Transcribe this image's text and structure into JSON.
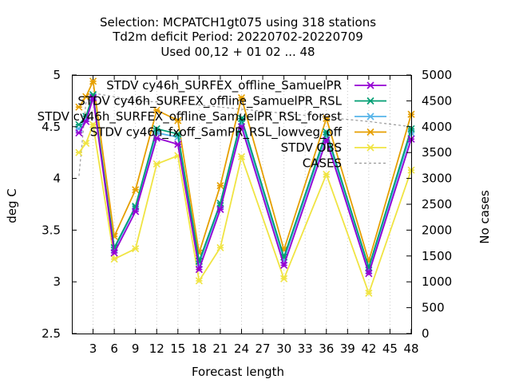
{
  "chart_data": {
    "type": "line",
    "title_lines": [
      "Selection: MCPATCH1gt075 using   318 stations",
      "Td2m deficit   Period: 20220702-20220709",
      "Used  00,12  + 01 02 ... 48"
    ],
    "xlabel": "Forecast length",
    "ylabel": "deg C",
    "y2label": "No cases",
    "xlim": [
      0,
      48
    ],
    "ylim": [
      2.5,
      5
    ],
    "y2lim": [
      0,
      5000
    ],
    "xticks": [
      3,
      6,
      9,
      12,
      15,
      18,
      21,
      24,
      27,
      30,
      33,
      36,
      39,
      42,
      45,
      48
    ],
    "yticks": [
      2.5,
      3,
      3.5,
      4,
      4.5,
      5
    ],
    "y2ticks": [
      0,
      500,
      1000,
      1500,
      2000,
      2500,
      3000,
      3500,
      4000,
      4500,
      5000
    ],
    "grid": true,
    "legend_position": "top-right",
    "x": [
      1,
      2,
      3,
      6,
      9,
      12,
      15,
      18,
      21,
      24,
      30,
      36,
      42,
      48
    ],
    "series": [
      {
        "name": "STDV cy46h_SURFEX_offline_SamuelPR",
        "color": "#9400d3",
        "marker": "x",
        "values": [
          4.44,
          4.55,
          4.78,
          3.28,
          3.68,
          4.39,
          4.33,
          3.12,
          3.7,
          4.5,
          3.16,
          4.37,
          3.08,
          4.38
        ]
      },
      {
        "name": "STDV cy46h_SURFEX_offline_SamuelPR_RSL",
        "color": "#009e73",
        "marker": "x",
        "values": [
          4.52,
          4.6,
          4.81,
          3.33,
          3.73,
          4.48,
          4.43,
          3.2,
          3.76,
          4.58,
          3.24,
          4.45,
          3.14,
          4.48
        ]
      },
      {
        "name": "STDV cy46h_SURFEX_offline_SamuelPR_RSL_forest",
        "color": "#56b4e9",
        "marker": "x",
        "values": [
          4.48,
          4.58,
          4.79,
          3.31,
          3.72,
          4.44,
          4.4,
          3.17,
          3.74,
          4.55,
          3.21,
          4.42,
          3.11,
          4.44
        ]
      },
      {
        "name": "STDV cy46h_fxoff_SamPR_RSL_lowveg_off",
        "color": "#e69f00",
        "marker": "x",
        "values": [
          4.69,
          4.79,
          4.94,
          3.44,
          3.89,
          4.66,
          4.56,
          3.28,
          3.93,
          4.78,
          3.31,
          4.58,
          3.2,
          4.62
        ]
      },
      {
        "name": "STDV OBS",
        "color": "#f0e442",
        "marker": "x",
        "values": [
          4.25,
          4.34,
          4.52,
          3.22,
          3.32,
          4.14,
          4.22,
          3.01,
          3.33,
          4.21,
          3.03,
          4.04,
          2.89,
          4.08
        ]
      },
      {
        "name": "CASES",
        "color": "#999999",
        "dashed": true,
        "axis": "y2",
        "values": [
          3050,
          4480,
          4650,
          4580,
          4500,
          4480,
          4460,
          4420,
          4380,
          4340,
          4260,
          4180,
          4100,
          4000
        ]
      }
    ]
  }
}
